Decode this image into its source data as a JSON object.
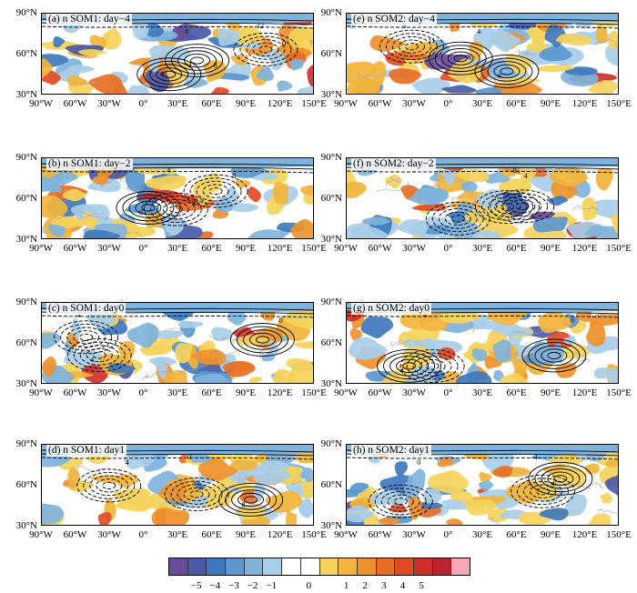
{
  "figure": {
    "lat_labels": [
      "90°N",
      "60°N",
      "30°N"
    ],
    "lon_labels": [
      "90°W",
      "60°W",
      "30°W",
      "0°",
      "30°E",
      "60°E",
      "90°E",
      "120°E",
      "150°E"
    ],
    "panels": [
      {
        "id": "a",
        "title": "(a) n SOM1: day−4",
        "contour_labels": [
          "12",
          "8",
          "4",
          "0",
          "4",
          "8"
        ]
      },
      {
        "id": "b",
        "title": "(b) n SOM1: day−2",
        "contour_labels": [
          "4",
          "8",
          "0",
          "4"
        ]
      },
      {
        "id": "c",
        "title": "(c) n SOM1: day0",
        "contour_labels": [
          "4",
          "0",
          "4"
        ]
      },
      {
        "id": "d",
        "title": "(d) n SOM1: day1",
        "contour_labels": [
          "0",
          "4",
          "8"
        ]
      },
      {
        "id": "e",
        "title": "(e) n SOM2: day−4",
        "contour_labels": [
          "0",
          "4",
          "8",
          "11"
        ]
      },
      {
        "id": "f",
        "title": "(f) n SOM2: day−2",
        "contour_labels": [
          "0",
          "4"
        ]
      },
      {
        "id": "g",
        "title": "(g) n SOM2: day0",
        "contour_labels": [
          "4",
          "0",
          "4"
        ]
      },
      {
        "id": "h",
        "title": "(h) n SOM2: day1",
        "contour_labels": [
          "4",
          "0",
          "4"
        ]
      }
    ]
  },
  "colorbar": {
    "labels": [
      "−5",
      "−4",
      "−3",
      "−2",
      "−1",
      "0",
      "1",
      "2",
      "3",
      "4",
      "5"
    ],
    "colors": [
      "#6a4c9c",
      "#4b5aa8",
      "#3f78bd",
      "#5a97cf",
      "#7fb3dc",
      "#a8cde8",
      "#ffffff",
      "#ffffff",
      "#f5d35a",
      "#f2b43a",
      "#ee922c",
      "#e86e25",
      "#e04b24",
      "#cf2f2a",
      "#b8252e",
      "#f7a8b5"
    ]
  }
}
